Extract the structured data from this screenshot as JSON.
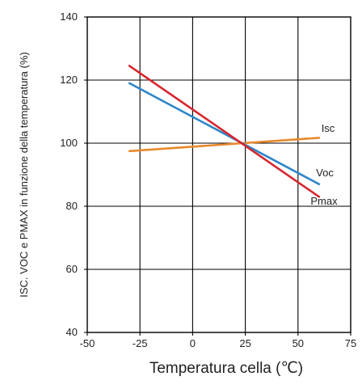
{
  "chart_data": {
    "type": "line",
    "xlabel": "Temperatura cella (℃)",
    "ylabel": "ISC. VOC e PMAX in funzione della temperatura (%)",
    "xlim": [
      -50,
      75
    ],
    "ylim": [
      40,
      140
    ],
    "xticks": [
      -50,
      -25,
      0,
      25,
      50,
      75
    ],
    "yticks": [
      40,
      60,
      80,
      100,
      120,
      140
    ],
    "grid": true,
    "legend": "none",
    "series": [
      {
        "name": "Isc",
        "color": "#e8892a",
        "x": [
          -30,
          60
        ],
        "y": [
          97.5,
          101.7
        ]
      },
      {
        "name": "Voc",
        "color": "#2f86c8",
        "x": [
          -30,
          60
        ],
        "y": [
          119,
          87
        ]
      },
      {
        "name": "Pmax",
        "color": "#d6262e",
        "x": [
          -30,
          60
        ],
        "y": [
          124.5,
          83
        ]
      }
    ]
  }
}
